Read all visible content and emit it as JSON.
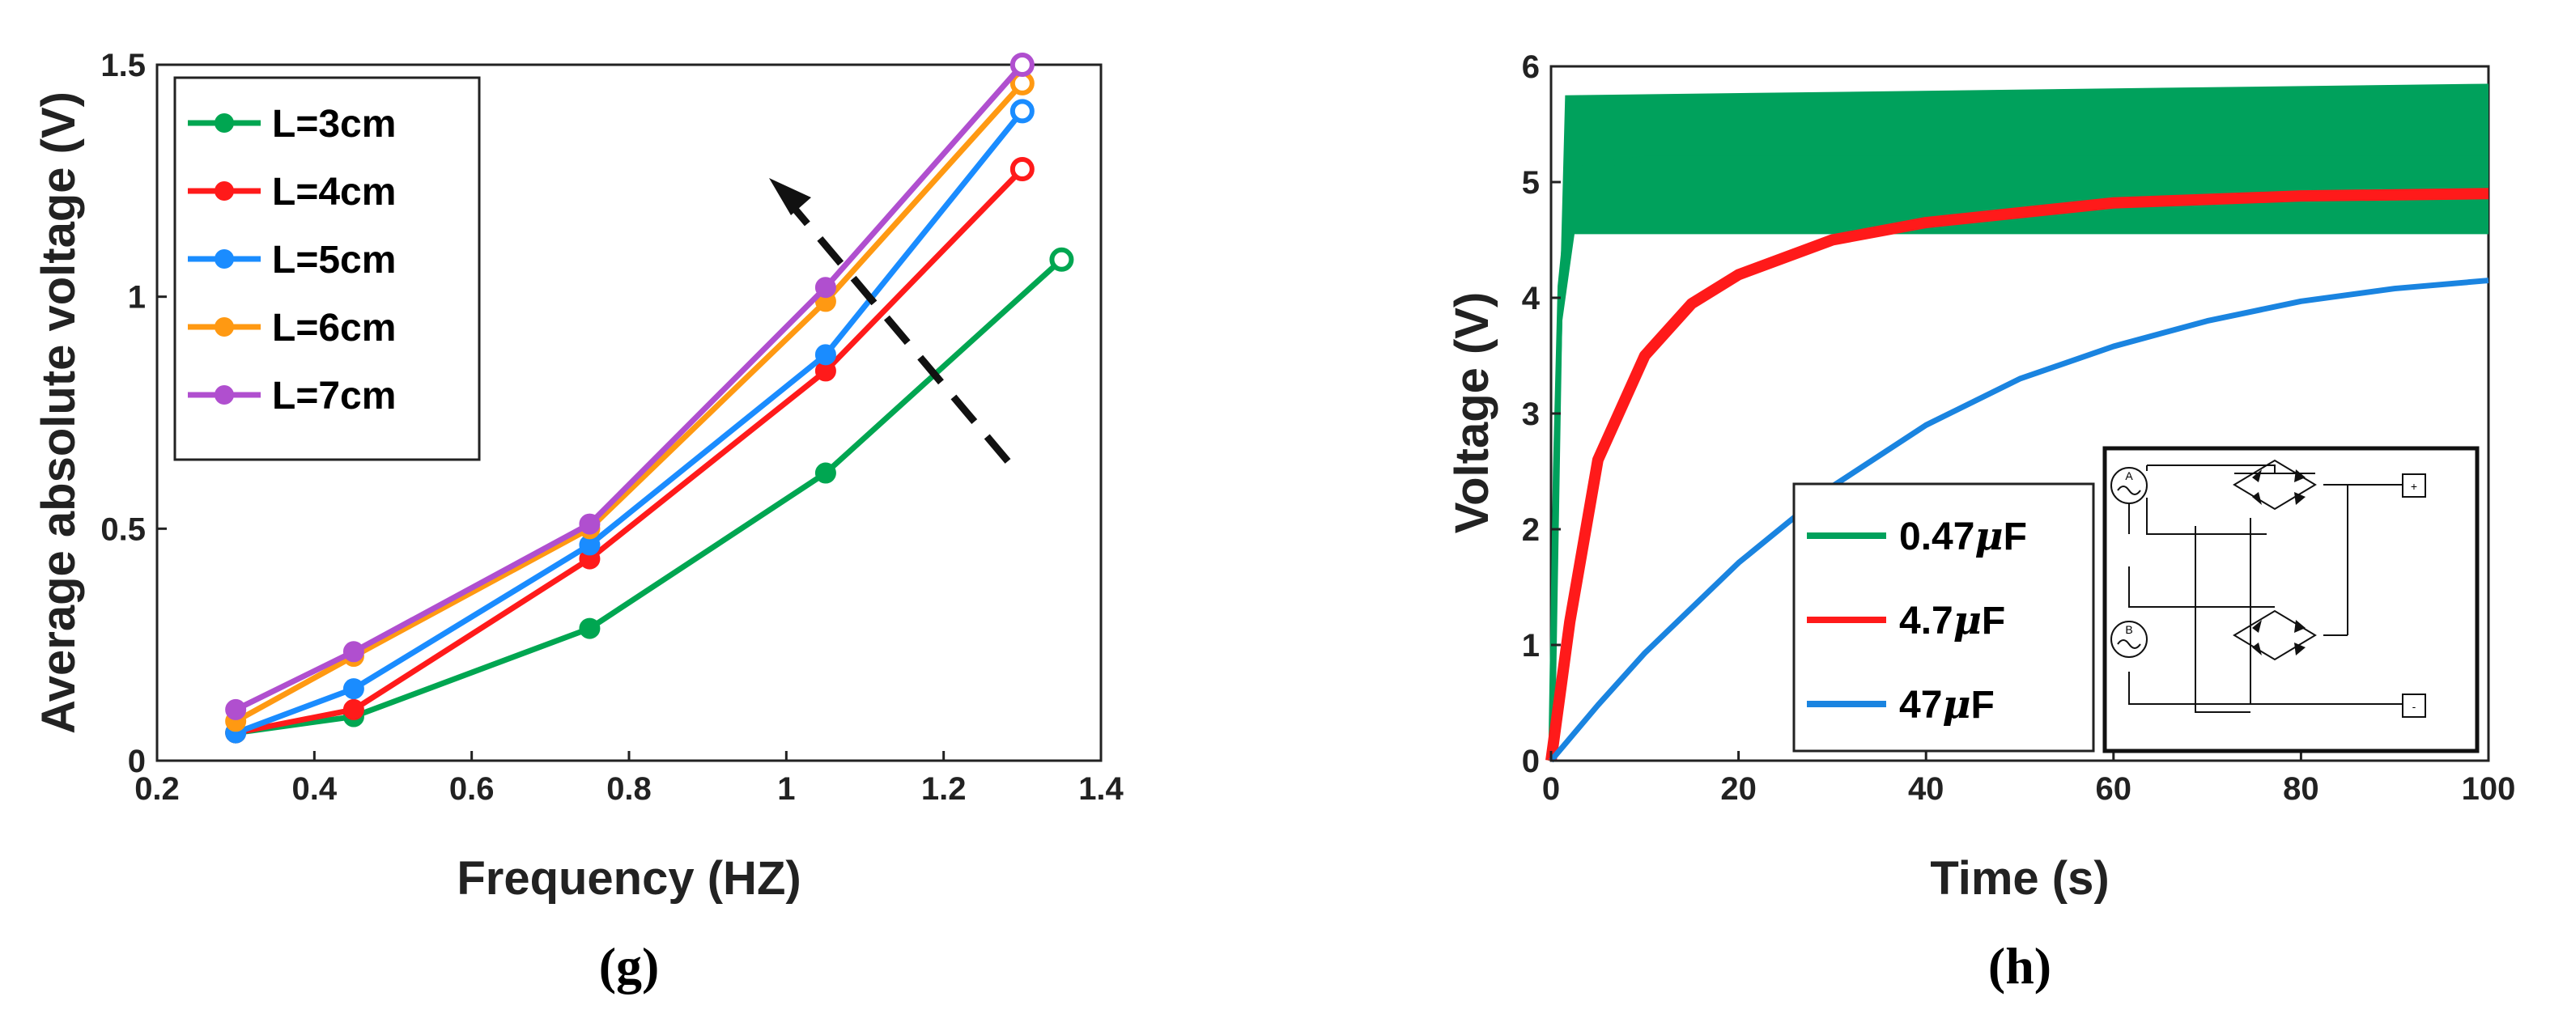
{
  "chart_data": [
    {
      "type": "line",
      "panel_label": "(g)",
      "xlabel": "Frequency (HZ)",
      "ylabel": "Average absolute voltage (V)",
      "xlim": [
        0.2,
        1.4
      ],
      "ylim": [
        0,
        1.5
      ],
      "xticks": [
        "0.2",
        "0.4",
        "0.6",
        "0.8",
        "1",
        "1.2",
        "1.4"
      ],
      "yticks": [
        "0",
        "0.5",
        "1",
        "1.5"
      ],
      "legend_position": "top-left",
      "annotation": "dashed arrow pointing up-left indicating increasing L",
      "series": [
        {
          "name": "L=3cm",
          "color": "#00a651",
          "x": [
            0.3,
            0.45,
            0.75,
            1.05,
            1.35
          ],
          "y": [
            0.06,
            0.095,
            0.285,
            0.62,
            1.08
          ]
        },
        {
          "name": "L=4cm",
          "color": "#ff1a1a",
          "x": [
            0.3,
            0.45,
            0.75,
            1.05,
            1.3
          ],
          "y": [
            0.06,
            0.11,
            0.435,
            0.84,
            1.275
          ]
        },
        {
          "name": "L=5cm",
          "color": "#1a8cff",
          "x": [
            0.3,
            0.45,
            0.75,
            1.05,
            1.3
          ],
          "y": [
            0.06,
            0.155,
            0.465,
            0.875,
            1.4
          ]
        },
        {
          "name": "L=6cm",
          "color": "#ff9912",
          "x": [
            0.3,
            0.45,
            0.75,
            1.05,
            1.3
          ],
          "y": [
            0.085,
            0.225,
            0.5,
            0.99,
            1.46
          ]
        },
        {
          "name": "L=7cm",
          "color": "#b04fcf",
          "x": [
            0.3,
            0.45,
            0.75,
            1.05,
            1.3
          ],
          "y": [
            0.11,
            0.235,
            0.51,
            1.02,
            1.5
          ]
        }
      ]
    },
    {
      "type": "line",
      "panel_label": "(h)",
      "xlabel": "Time (s)",
      "ylabel": "Voltage (V)",
      "xlim": [
        0,
        100
      ],
      "ylim": [
        0,
        6
      ],
      "xticks": [
        "0",
        "20",
        "40",
        "60",
        "80",
        "100"
      ],
      "yticks": [
        "0",
        "1",
        "2",
        "3",
        "4",
        "5",
        "6"
      ],
      "legend_position": "bottom-center",
      "inset": "bridge rectifier circuit diagram with sources A and B and output terminals + and -",
      "series": [
        {
          "name": "0.47μF",
          "label_value": "0.47",
          "label_unit": "F",
          "color": "#00a15c",
          "x": [
            0,
            0.5,
            1,
            2,
            3,
            4,
            5,
            10,
            20,
            40,
            60,
            80,
            100
          ],
          "y": [
            0,
            2.5,
            4.1,
            4.9,
            5.1,
            5.15,
            5.15,
            5.2,
            5.2,
            5.2,
            5.2,
            5.2,
            5.2
          ],
          "ripple_band": [
            4.55,
            5.85
          ]
        },
        {
          "name": "4.7μF",
          "label_value": "4.7",
          "label_unit": "F",
          "color": "#ff1a1a",
          "x": [
            0,
            2,
            5,
            10,
            15,
            20,
            30,
            40,
            60,
            80,
            100
          ],
          "y": [
            0,
            1.2,
            2.6,
            3.5,
            3.95,
            4.2,
            4.5,
            4.65,
            4.82,
            4.88,
            4.9
          ]
        },
        {
          "name": "47μF",
          "label_value": "47",
          "label_unit": "F",
          "color": "#1a84e0",
          "x": [
            0,
            5,
            10,
            20,
            30,
            40,
            50,
            60,
            70,
            80,
            90,
            100
          ],
          "y": [
            0,
            0.48,
            0.93,
            1.71,
            2.37,
            2.9,
            3.3,
            3.58,
            3.8,
            3.97,
            4.08,
            4.15
          ]
        }
      ]
    }
  ],
  "inset_text": {
    "source_a": "A",
    "source_b": "B",
    "plus": "+",
    "minus": "-"
  }
}
